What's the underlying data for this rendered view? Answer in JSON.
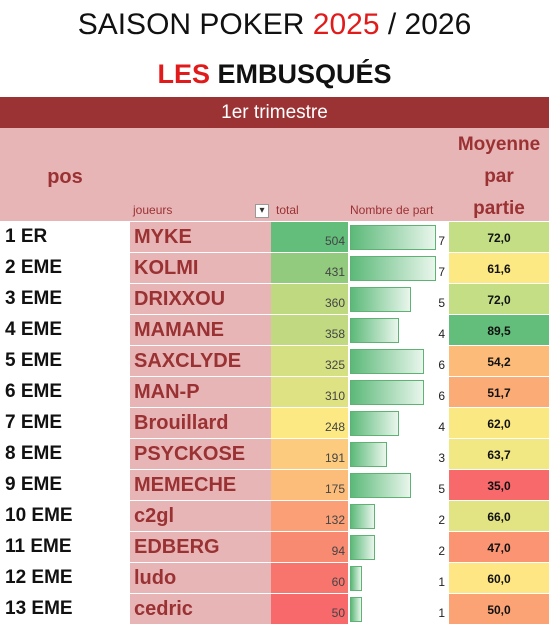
{
  "title": {
    "part1": "SAISON POKER ",
    "year1": "2025",
    "part2": " / 2026"
  },
  "subtitle": {
    "red": "LES ",
    "rest": "EMBUSQUÉS"
  },
  "period": "1er trimestre",
  "headers": {
    "pos": "pos",
    "joueurs": "joueurs",
    "total": "total",
    "parts": "Nombre de part",
    "moyenne_l1": "Moyenne",
    "moyenne_l2": "par",
    "moyenne_l3": "partie"
  },
  "filter_icon": "dropdown-filter-icon",
  "max_parts": 7,
  "rows": [
    {
      "pos": "1 ER",
      "name": "MYKE",
      "total": "504",
      "parts": 7,
      "moy": "72,0",
      "total_bg": "#63be7b",
      "moy_bg": "#c3de85"
    },
    {
      "pos": "2 EME",
      "name": "KOLMI",
      "total": "431",
      "parts": 7,
      "moy": "61,6",
      "total_bg": "#92cb7e",
      "moy_bg": "#fde983"
    },
    {
      "pos": "3 EME",
      "name": "DRIXXOU",
      "total": "360",
      "parts": 5,
      "moy": "72,0",
      "total_bg": "#bfd981",
      "moy_bg": "#c3de85"
    },
    {
      "pos": "4 EME",
      "name": "MAMANE",
      "total": "358",
      "parts": 4,
      "moy": "89,5",
      "total_bg": "#c1da81",
      "moy_bg": "#63be7b"
    },
    {
      "pos": "5 EME",
      "name": "SAXCLYDE",
      "total": "325",
      "parts": 6,
      "moy": "54,2",
      "total_bg": "#d5e082",
      "moy_bg": "#fcbb78"
    },
    {
      "pos": "6 EME",
      "name": "MAN-P",
      "total": "310",
      "parts": 6,
      "moy": "51,7",
      "total_bg": "#dfe282",
      "moy_bg": "#fbab76"
    },
    {
      "pos": "7 EME",
      "name": "Brouillard",
      "total": "248",
      "parts": 4,
      "moy": "62,0",
      "total_bg": "#fde983",
      "moy_bg": "#fae983"
    },
    {
      "pos": "8 EME",
      "name": "PSYCKOSE",
      "total": "191",
      "parts": 3,
      "moy": "63,7",
      "total_bg": "#fdcb7d",
      "moy_bg": "#f1e783"
    },
    {
      "pos": "9 EME",
      "name": "MEMECHE",
      "total": "175",
      "parts": 5,
      "moy": "35,0",
      "total_bg": "#fcbc7a",
      "moy_bg": "#f8696b"
    },
    {
      "pos": "10 EME",
      "name": "c2gl",
      "total": "132",
      "parts": 2,
      "moy": "66,0",
      "total_bg": "#fba076",
      "moy_bg": "#e2e383"
    },
    {
      "pos": "11 EME",
      "name": "EDBERG",
      "total": "94",
      "parts": 2,
      "moy": "47,0",
      "total_bg": "#f98a72",
      "moy_bg": "#fa9473"
    },
    {
      "pos": "12 EME",
      "name": "ludo",
      "total": "60",
      "parts": 1,
      "moy": "60,0",
      "total_bg": "#f8756e",
      "moy_bg": "#fde683"
    },
    {
      "pos": "13 EME",
      "name": "cedric",
      "total": "50",
      "parts": 1,
      "moy": "50,0",
      "total_bg": "#f8696b",
      "moy_bg": "#fba374"
    }
  ]
}
